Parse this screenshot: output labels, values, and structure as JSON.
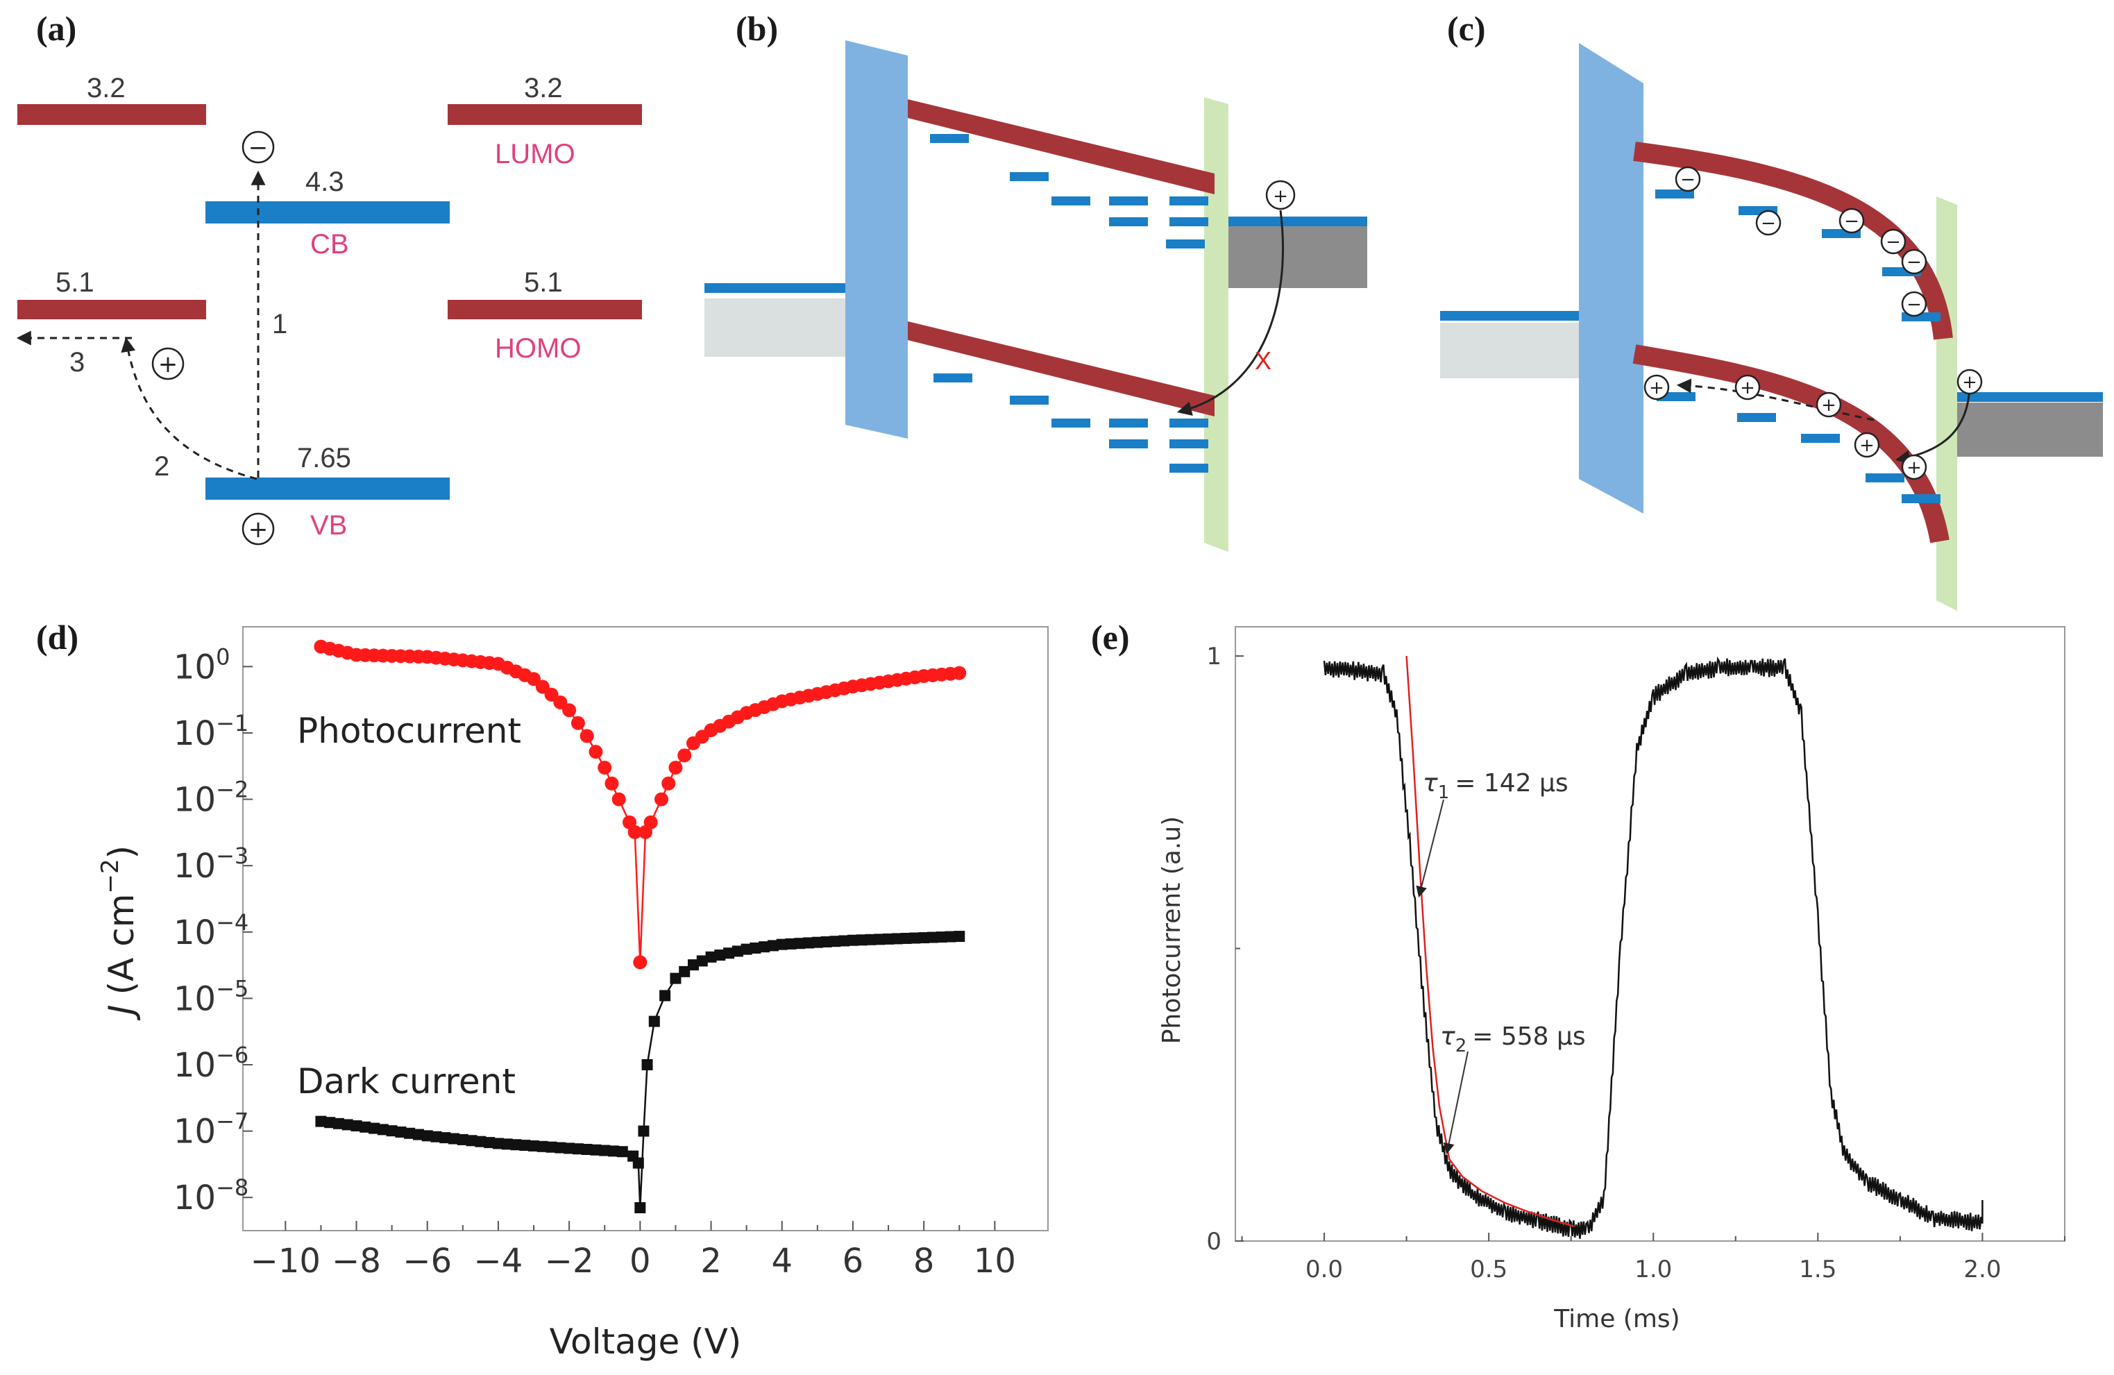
{
  "panel_labels": [
    "(a)",
    "(b)",
    "(c)",
    "(d)",
    "(e)"
  ],
  "colors": {
    "band_red": "#a6353a",
    "band_blue": "#1a7fc6",
    "barrier_blue": "#7fb2e0",
    "contact_green": "#cfe7b7",
    "gray_dark": "#8c8c8c",
    "gray_light": "#dadfe0",
    "photocurrent": "#ff1a1a",
    "dark": "#111111",
    "fit": "#e02020",
    "label_pink": "#e0407e"
  },
  "panel_a": {
    "lumo_left": "3.2",
    "homo_left": "5.1",
    "cb_value": "4.3",
    "cb_label": "CB",
    "vb_value": "7.65",
    "vb_label": "VB",
    "lumo_right": "3.2",
    "lumo_label": "LUMO",
    "homo_right": "5.1",
    "homo_label": "HOMO",
    "step1": "1",
    "step2": "2",
    "step3": "3",
    "electron": "−",
    "hole": "+"
  },
  "panel_b": {
    "cross": "X",
    "hole": "+"
  },
  "panel_c": {
    "electron": "−",
    "hole": "+"
  },
  "chart_data": [
    {
      "type": "scatter",
      "panel": "(d)",
      "title": "",
      "xlabel": "Voltage (V)",
      "ylabel": "J (A cm−2)",
      "ylabel_italic": "J",
      "ylabel_units": "(A cm",
      "ylabel_exp": "−2",
      "ylabel_close": ")",
      "xlim": [
        -11.2,
        11.5
      ],
      "ylim_log10": [
        -8.5,
        0.6
      ],
      "yscale": "log",
      "xticks": [
        -10,
        -8,
        -6,
        -4,
        -2,
        0,
        2,
        4,
        6,
        8,
        10
      ],
      "xtick_labels": [
        "−10",
        "−8",
        "−6",
        "−4",
        "−2",
        "0",
        "2",
        "4",
        "6",
        "8",
        "10"
      ],
      "yticks_exp": [
        0,
        -1,
        -2,
        -3,
        -4,
        -5,
        -6,
        -7,
        -8
      ],
      "ytick_base": "10",
      "ytick_exp_labels": [
        "0",
        "−1",
        "−2",
        "−3",
        "−4",
        "−5",
        "−6",
        "−7",
        "−8"
      ],
      "series": [
        {
          "name": "Photocurrent",
          "marker": "circle",
          "color": "#ff1a1a",
          "x": [
            -9.0,
            -8.0,
            -6.0,
            -4.0,
            -3.0,
            -2.0,
            -1.5,
            -1.0,
            -0.6,
            -0.3,
            -0.15,
            0.0,
            0.15,
            0.3,
            0.6,
            1.0,
            1.5,
            2.0,
            3.0,
            4.0,
            6.0,
            8.0,
            9.0
          ],
          "y": [
            2.0,
            1.5,
            1.4,
            1.1,
            0.65,
            0.22,
            0.09,
            0.03,
            0.01,
            0.0045,
            0.0032,
            3.5e-05,
            0.0032,
            0.0045,
            0.01,
            0.03,
            0.07,
            0.11,
            0.2,
            0.3,
            0.5,
            0.72,
            0.8
          ]
        },
        {
          "name": "Dark current",
          "marker": "square",
          "color": "#111111",
          "x": [
            -9.0,
            -8.0,
            -6.0,
            -4.0,
            -2.0,
            -1.0,
            -0.5,
            -0.2,
            -0.05,
            0.0,
            0.1,
            0.2,
            0.4,
            0.7,
            1.0,
            1.5,
            2.0,
            3.0,
            4.0,
            6.0,
            8.0,
            9.0
          ],
          "y": [
            1.4e-07,
            1.2e-07,
            8.5e-08,
            6.5e-08,
            5.5e-08,
            5.1e-08,
            4.9e-08,
            4.2e-08,
            3.3e-08,
            7e-09,
            1e-07,
            1e-06,
            4.5e-06,
            1.1e-05,
            2e-05,
            3.2e-05,
            4.2e-05,
            5.5e-05,
            6.5e-05,
            7.5e-05,
            8.2e-05,
            8.6e-05
          ]
        }
      ],
      "annotations": [
        "Photocurrent",
        "Dark current"
      ]
    },
    {
      "type": "line",
      "panel": "(e)",
      "title": "",
      "xlabel": "Time (ms)",
      "ylabel": "Photocurrent (a.u)",
      "xlim": [
        -0.27,
        2.25
      ],
      "ylim": [
        0,
        1.05
      ],
      "xticks": [
        0.0,
        0.5,
        1.0,
        1.5,
        2.0
      ],
      "xtick_labels": [
        "0.0",
        "0.5",
        "1.0",
        "1.5",
        "2.0"
      ],
      "yticks": [
        0,
        1
      ],
      "ytick_labels": [
        "0",
        "1"
      ],
      "series": [
        {
          "name": "Photocurrent",
          "color": "#111111",
          "x": [
            0.0,
            0.18,
            0.22,
            0.26,
            0.3,
            0.34,
            0.38,
            0.45,
            0.55,
            0.65,
            0.75,
            0.8,
            0.85,
            0.9,
            0.95,
            1.0,
            1.1,
            1.2,
            1.3,
            1.4,
            1.45,
            1.5,
            1.54,
            1.58,
            1.65,
            1.75,
            1.85,
            2.0
          ],
          "y": [
            0.98,
            0.97,
            0.9,
            0.68,
            0.42,
            0.2,
            0.12,
            0.08,
            0.05,
            0.035,
            0.02,
            0.02,
            0.07,
            0.5,
            0.84,
            0.93,
            0.97,
            0.98,
            0.98,
            0.98,
            0.9,
            0.55,
            0.25,
            0.15,
            0.1,
            0.07,
            0.04,
            0.03
          ]
        },
        {
          "name": "Exponential fit",
          "color": "#e02020",
          "x": [
            0.25,
            0.27,
            0.29,
            0.31,
            0.33,
            0.35,
            0.38,
            0.42,
            0.48,
            0.55,
            0.62,
            0.7,
            0.76
          ],
          "y": [
            1.0,
            0.83,
            0.64,
            0.47,
            0.33,
            0.23,
            0.14,
            0.11,
            0.085,
            0.065,
            0.05,
            0.035,
            0.025
          ]
        }
      ],
      "annotations": [
        {
          "tau": "τ",
          "sub": "1",
          "value": "= 142 μs"
        },
        {
          "tau": "τ",
          "sub": "2",
          "value": "= 558 μs"
        }
      ]
    }
  ]
}
